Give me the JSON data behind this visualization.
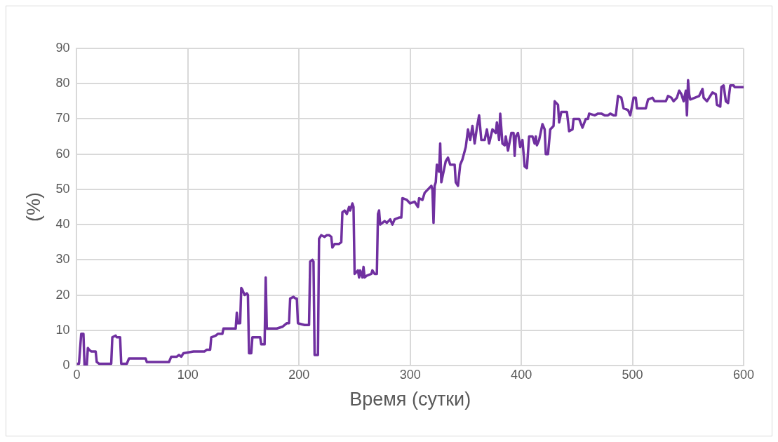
{
  "chart_data": {
    "type": "line",
    "xlabel": "Время (сутки)",
    "ylabel": "(%)",
    "color": "#7030a0",
    "grid": true,
    "xlim": [
      0,
      600
    ],
    "xticks": [
      0,
      100,
      200,
      300,
      400,
      500,
      600
    ],
    "ylim": [
      0,
      90
    ],
    "yticks": [
      0,
      10,
      20,
      30,
      40,
      50,
      60,
      70,
      80,
      90
    ],
    "x": [
      0,
      2,
      4,
      6,
      7,
      9,
      10,
      11,
      13,
      17,
      18,
      20,
      31,
      32,
      35,
      36,
      39,
      40,
      45,
      47,
      62,
      63,
      83,
      85,
      90,
      92,
      94,
      96,
      105,
      115,
      117,
      120,
      121,
      125,
      127,
      131,
      132,
      140,
      143,
      144,
      145,
      147,
      148,
      149,
      151,
      153,
      154,
      155,
      157,
      158,
      165,
      166,
      169,
      170,
      171,
      175,
      180,
      185,
      189,
      191,
      192,
      195,
      197,
      198,
      199,
      205,
      209,
      210,
      212,
      213,
      214,
      217,
      218,
      220,
      223,
      225,
      227,
      229,
      230,
      232,
      236,
      238,
      239,
      241,
      243,
      245,
      246,
      248,
      249,
      250,
      253,
      254,
      255,
      257,
      258,
      259,
      261,
      265,
      266,
      268,
      270,
      271,
      272,
      273,
      277,
      279,
      282,
      284,
      286,
      290,
      292,
      293,
      297,
      300,
      304,
      307,
      308,
      311,
      313,
      316,
      319,
      320,
      321,
      322,
      323,
      324,
      326,
      327,
      328,
      330,
      332,
      334,
      336,
      340,
      341,
      343,
      345,
      347,
      350,
      352,
      354,
      356,
      358,
      360,
      362,
      364,
      367,
      369,
      371,
      374,
      377,
      378,
      380,
      381,
      383,
      385,
      386,
      388,
      391,
      393,
      394,
      395,
      397,
      399,
      401,
      403,
      405,
      407,
      410,
      412,
      413,
      414,
      416,
      419,
      421,
      422,
      424,
      426,
      429,
      430,
      433,
      434,
      436,
      441,
      443,
      446,
      447,
      452,
      455,
      458,
      460,
      461,
      466,
      469,
      472,
      475,
      478,
      480,
      483,
      485,
      487,
      490,
      492,
      496,
      498,
      501,
      503,
      504,
      508,
      512,
      514,
      518,
      520,
      530,
      532,
      535,
      537,
      540,
      542,
      544,
      546,
      548,
      549,
      550,
      551,
      552,
      556,
      560,
      563,
      564,
      567,
      570,
      572,
      575,
      576,
      579,
      580,
      582,
      584,
      586,
      588,
      591,
      592,
      600
    ],
    "values": [
      0.5,
      0.5,
      9,
      9,
      0,
      0,
      5,
      4.5,
      4,
      4,
      1,
      0.5,
      0.5,
      8,
      8.5,
      8,
      8,
      0.5,
      0.5,
      2,
      2,
      1,
      1,
      2.5,
      2.5,
      3,
      2.5,
      3.5,
      4,
      4,
      4.5,
      4.5,
      8,
      8.5,
      9,
      9,
      10.5,
      10.5,
      10.5,
      15,
      12,
      12,
      22,
      21.5,
      20,
      20.5,
      20,
      3.5,
      3.5,
      8,
      8,
      6,
      6,
      25,
      10.5,
      10.5,
      10.5,
      11,
      12,
      12,
      19,
      19.5,
      19,
      19,
      12,
      11.5,
      11.5,
      29.5,
      30,
      29.5,
      3,
      3,
      36,
      37,
      36.5,
      37,
      37,
      36.5,
      33.5,
      34.5,
      34.5,
      35,
      43.5,
      44,
      43,
      45,
      44,
      46,
      45,
      26,
      27,
      25,
      27,
      25,
      28,
      25,
      25.5,
      26,
      27,
      26,
      26,
      43,
      44,
      40,
      41,
      40.5,
      41.5,
      40,
      41.5,
      42,
      42,
      47.5,
      47,
      46,
      46.5,
      45,
      47.5,
      47,
      49,
      50,
      51,
      50,
      40.5,
      51,
      52,
      57,
      55,
      63,
      52,
      55,
      58,
      59,
      57,
      57,
      52,
      51,
      57,
      58.5,
      62,
      67,
      64,
      68,
      63,
      67.5,
      71,
      64,
      64,
      67,
      63,
      67,
      66,
      69,
      64,
      71.5,
      63,
      62.5,
      65,
      61,
      66,
      66,
      59.5,
      65,
      66,
      62,
      64,
      56.5,
      56,
      65,
      65,
      63,
      65,
      62.5,
      64,
      68.5,
      67,
      60,
      60,
      67,
      68,
      75,
      74,
      69,
      72,
      72,
      66.5,
      67,
      70,
      70,
      67.5,
      70,
      70,
      71.5,
      71,
      71.5,
      71.5,
      71,
      71,
      71.5,
      71,
      71,
      76.5,
      76,
      73,
      72.5,
      71,
      76,
      76,
      73,
      73,
      73,
      75.5,
      76,
      75,
      75,
      76.5,
      76,
      75,
      76,
      78,
      77,
      75,
      78,
      71,
      81,
      77,
      75.5,
      76,
      76.5,
      78.5,
      76,
      75,
      76.5,
      77.5,
      77,
      74,
      73.5,
      79,
      79.5,
      75,
      74.5,
      79.5,
      79.5,
      79,
      79
    ]
  }
}
